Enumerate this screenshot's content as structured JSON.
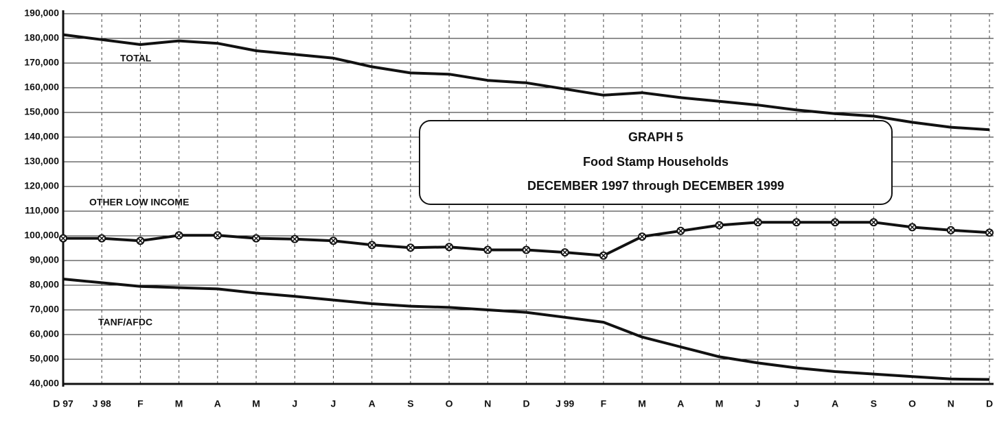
{
  "chart_data": {
    "type": "line",
    "title": "GRAPH 5",
    "subtitle": "Food Stamp Households",
    "subtitle2": "DECEMBER 1997 through DECEMBER 1999",
    "categories": [
      "D 97",
      "J 98",
      "F",
      "M",
      "A",
      "M",
      "J",
      "J",
      "A",
      "S",
      "O",
      "N",
      "D",
      "J 99",
      "F",
      "M",
      "A",
      "M",
      "J",
      "J",
      "A",
      "S",
      "O",
      "N",
      "D"
    ],
    "series": [
      {
        "name": "TOTAL",
        "color": "#111111",
        "values": [
          181500,
          179500,
          177500,
          179000,
          178000,
          175000,
          173500,
          172000,
          168500,
          166000,
          165500,
          163000,
          162000,
          159500,
          157000,
          158000,
          156000,
          154500,
          153000,
          151000,
          149500,
          148500,
          146000,
          144000,
          143000
        ]
      },
      {
        "name": "OTHER LOW INCOME",
        "color": "#111111",
        "values": [
          99000,
          99000,
          98000,
          100200,
          100200,
          99000,
          98700,
          98000,
          96300,
          95200,
          95500,
          94300,
          94300,
          93300,
          92000,
          99700,
          102000,
          104300,
          105500,
          105500,
          105500,
          105500,
          103500,
          102300,
          101300
        ]
      },
      {
        "name": "TANF/AFDC",
        "color": "#111111",
        "values": [
          82500,
          81000,
          79500,
          79000,
          78500,
          76800,
          75500,
          74000,
          72500,
          71500,
          71000,
          70000,
          69000,
          67000,
          65000,
          59000,
          55000,
          51000,
          48500,
          46500,
          45000,
          44000,
          43000,
          42000,
          41800
        ]
      }
    ],
    "ylim": [
      40000,
      190000
    ],
    "yticks": [
      {
        "value": 40000,
        "label": "40,000"
      },
      {
        "value": 50000,
        "label": "50,000"
      },
      {
        "value": 60000,
        "label": "60,000"
      },
      {
        "value": 70000,
        "label": "70,000"
      },
      {
        "value": 80000,
        "label": "80,000"
      },
      {
        "value": 90000,
        "label": "90,000"
      },
      {
        "value": 100000,
        "label": "100,000"
      },
      {
        "value": 110000,
        "label": "110,000"
      },
      {
        "value": 120000,
        "label": "120,000"
      },
      {
        "value": 130000,
        "label": "130,000"
      },
      {
        "value": 140000,
        "label": "140,000"
      },
      {
        "value": 150000,
        "label": "150,000"
      },
      {
        "value": 160000,
        "label": "160,000"
      },
      {
        "value": 170000,
        "label": "170,000"
      },
      {
        "value": 180000,
        "label": "180,000"
      },
      {
        "value": 190000,
        "label": "190,000"
      }
    ],
    "grid": true
  }
}
